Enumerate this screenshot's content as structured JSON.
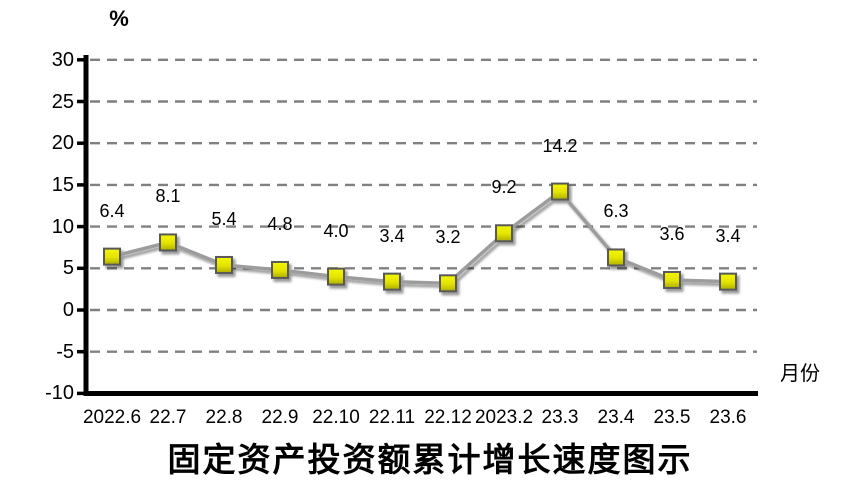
{
  "chart_data": {
    "type": "line",
    "title": "固定资产投资额累计增长速度图示",
    "y_axis_label": "%",
    "x_axis_label": "月份",
    "categories": [
      "2022.6",
      "22.7",
      "22.8",
      "22.9",
      "22.10",
      "22.11",
      "22.12",
      "2023.2",
      "23.3",
      "23.4",
      "23.5",
      "23.6"
    ],
    "values": [
      6.4,
      8.1,
      5.4,
      4.8,
      4.0,
      3.4,
      3.2,
      9.2,
      14.2,
      6.3,
      3.6,
      3.4
    ],
    "data_labels": [
      "6.4",
      "8.1",
      "5.4",
      "4.8",
      "4.0",
      "3.4",
      "3.2",
      "9.2",
      "14.2",
      "6.3",
      "3.6",
      "3.4"
    ],
    "y_ticks": [
      30,
      25,
      20,
      15,
      10,
      5,
      0,
      -5,
      -10
    ],
    "y_tick_labels": [
      "30",
      "25",
      "20",
      "15",
      "10",
      "5",
      "0",
      "-5",
      "-10"
    ],
    "ylim": [
      -10,
      30
    ],
    "grid": "horizontal-dashed",
    "legend_position": "none",
    "colors": {
      "marker_fill_top": "#f6f600",
      "marker_fill_mid": "#e3e300",
      "marker_fill_bottom": "#adad00",
      "marker_border": "#595959",
      "line": "#9c9c9c",
      "gridline": "#808080",
      "axis": "#000000",
      "text": "#000000",
      "background": "#ffffff"
    }
  }
}
